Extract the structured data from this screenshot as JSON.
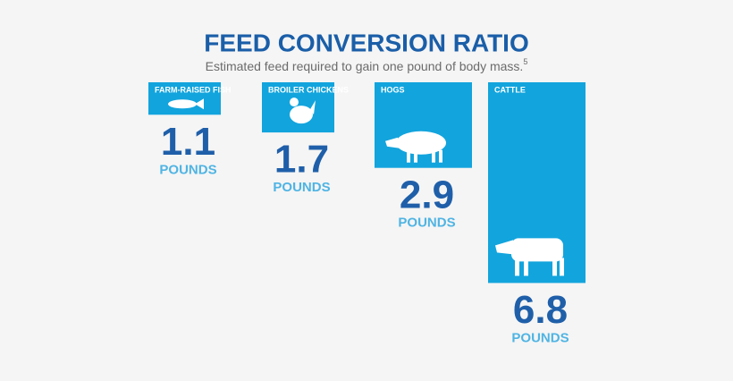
{
  "chart_data": {
    "type": "bar",
    "title": "FEED CONVERSION RATIO",
    "subtitle": "Estimated feed required to gain one pound of body mass.",
    "footnote_marker": "5",
    "categories": [
      "FARM-RAISED FISH",
      "BROILER CHICKENS",
      "HOGS",
      "CATTLE"
    ],
    "values": [
      1.1,
      1.7,
      2.9,
      6.8
    ],
    "unit": "POUNDS",
    "color": "#12a4dd"
  }
}
